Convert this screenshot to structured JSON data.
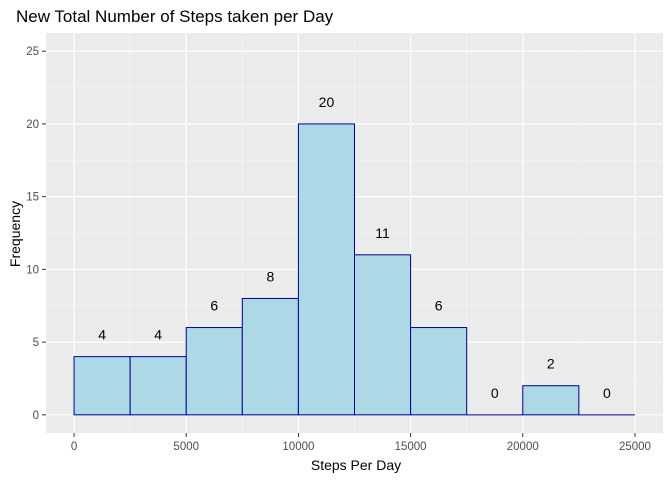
{
  "chart_data": {
    "type": "bar",
    "title": "New Total Number of Steps taken per Day",
    "xlabel": "Steps Per Day",
    "ylabel": "Frequency",
    "bins": [
      {
        "start": 0,
        "end": 2500,
        "value": 4,
        "label": "4"
      },
      {
        "start": 2500,
        "end": 5000,
        "value": 4,
        "label": "4"
      },
      {
        "start": 5000,
        "end": 7500,
        "value": 6,
        "label": "6"
      },
      {
        "start": 7500,
        "end": 10000,
        "value": 8,
        "label": "8"
      },
      {
        "start": 10000,
        "end": 12500,
        "value": 20,
        "label": "20"
      },
      {
        "start": 12500,
        "end": 15000,
        "value": 11,
        "label": "11"
      },
      {
        "start": 15000,
        "end": 17500,
        "value": 6,
        "label": "6"
      },
      {
        "start": 17500,
        "end": 20000,
        "value": 0,
        "label": "0"
      },
      {
        "start": 20000,
        "end": 22500,
        "value": 2,
        "label": "2"
      },
      {
        "start": 22500,
        "end": 25000,
        "value": 0,
        "label": "0"
      }
    ],
    "xlim": [
      0,
      25000
    ],
    "ylim": [
      0,
      25
    ],
    "xticks": [
      "0",
      "5000",
      "10000",
      "15000",
      "20000",
      "25000"
    ],
    "yticks": [
      "0",
      "5",
      "10",
      "15",
      "20",
      "25"
    ],
    "grid": true,
    "colors": {
      "panel_background": "#ebebeb",
      "grid_major": "#ffffff",
      "grid_minor": "#f5f5f5",
      "bar_fill": "#add8e6",
      "bar_outline": "#00008b",
      "tick_text": "#4d4d4d",
      "tick_mark": "#333333"
    }
  }
}
